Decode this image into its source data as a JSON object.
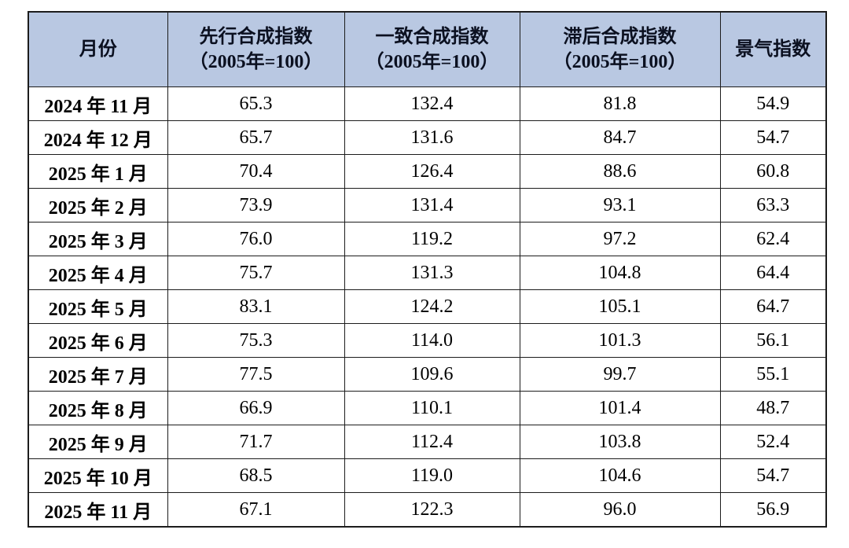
{
  "table": {
    "columns": [
      {
        "label": "月份",
        "sub": ""
      },
      {
        "label": "先行合成指数",
        "sub": "（2005年=100）"
      },
      {
        "label": "一致合成指数",
        "sub": "（2005年=100）"
      },
      {
        "label": "滞后合成指数",
        "sub": "（2005年=100）"
      },
      {
        "label": "景气指数",
        "sub": ""
      }
    ],
    "rows": [
      {
        "month": "2024 年 11 月",
        "values": [
          "65.3",
          "132.4",
          "81.8",
          "54.9"
        ]
      },
      {
        "month": "2024 年 12 月",
        "values": [
          "65.7",
          "131.6",
          "84.7",
          "54.7"
        ]
      },
      {
        "month": "2025 年 1 月",
        "values": [
          "70.4",
          "126.4",
          "88.6",
          "60.8"
        ]
      },
      {
        "month": "2025 年 2 月",
        "values": [
          "73.9",
          "131.4",
          "93.1",
          "63.3"
        ]
      },
      {
        "month": "2025 年 3 月",
        "values": [
          "76.0",
          "119.2",
          "97.2",
          "62.4"
        ]
      },
      {
        "month": "2025 年 4 月",
        "values": [
          "75.7",
          "131.3",
          "104.8",
          "64.4"
        ]
      },
      {
        "month": "2025 年 5 月",
        "values": [
          "83.1",
          "124.2",
          "105.1",
          "64.7"
        ]
      },
      {
        "month": "2025 年 6 月",
        "values": [
          "75.3",
          "114.0",
          "101.3",
          "56.1"
        ]
      },
      {
        "month": "2025 年 7 月",
        "values": [
          "77.5",
          "109.6",
          "99.7",
          "55.1"
        ]
      },
      {
        "month": "2025 年 8 月",
        "values": [
          "66.9",
          "110.1",
          "101.4",
          "48.7"
        ]
      },
      {
        "month": "2025 年 9 月",
        "values": [
          "71.7",
          "112.4",
          "103.8",
          "52.4"
        ]
      },
      {
        "month": "2025 年 10 月",
        "values": [
          "68.5",
          "119.0",
          "104.6",
          "54.7"
        ]
      },
      {
        "month": "2025 年 11 月",
        "values": [
          "67.1",
          "122.3",
          "96.0",
          "56.9"
        ]
      }
    ]
  },
  "colors": {
    "header_bg": "#b9c8e2",
    "border": "#1c1c1c",
    "text": "#000000"
  },
  "chart_data": {
    "type": "table",
    "columns": [
      "月份",
      "先行合成指数（2005年=100）",
      "一致合成指数（2005年=100）",
      "滞后合成指数（2005年=100）",
      "景气指数"
    ],
    "rows": [
      [
        "2024年11月",
        65.3,
        132.4,
        81.8,
        54.9
      ],
      [
        "2024年12月",
        65.7,
        131.6,
        84.7,
        54.7
      ],
      [
        "2025年1月",
        70.4,
        126.4,
        88.6,
        60.8
      ],
      [
        "2025年2月",
        73.9,
        131.4,
        93.1,
        63.3
      ],
      [
        "2025年3月",
        76.0,
        119.2,
        97.2,
        62.4
      ],
      [
        "2025年4月",
        75.7,
        131.3,
        104.8,
        64.4
      ],
      [
        "2025年5月",
        83.1,
        124.2,
        105.1,
        64.7
      ],
      [
        "2025年6月",
        75.3,
        114.0,
        101.3,
        56.1
      ],
      [
        "2025年7月",
        77.5,
        109.6,
        99.7,
        55.1
      ],
      [
        "2025年8月",
        66.9,
        110.1,
        101.4,
        48.7
      ],
      [
        "2025年9月",
        71.7,
        112.4,
        103.8,
        52.4
      ],
      [
        "2025年10月",
        68.5,
        119.0,
        104.6,
        54.7
      ],
      [
        "2025年11月",
        67.1,
        122.3,
        96.0,
        56.9
      ]
    ]
  }
}
